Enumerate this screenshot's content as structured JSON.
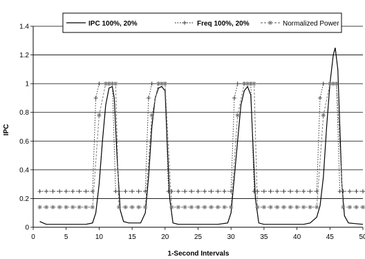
{
  "chart_data": {
    "type": "line",
    "xlabel": "1-Second Intervals",
    "ylabel": "IPC",
    "xlim": [
      0,
      50
    ],
    "ylim": [
      0,
      1.4
    ],
    "x_ticks": [
      0,
      5,
      10,
      15,
      20,
      25,
      30,
      35,
      40,
      45,
      50
    ],
    "y_ticks": [
      0,
      0.2,
      0.4,
      0.6,
      0.8,
      1,
      1.2,
      1.4
    ],
    "y_tick_labels": [
      "0",
      "0.2",
      "0.4",
      "0.6",
      "0.8",
      "1",
      "1.2",
      "1.4"
    ],
    "grid": "horizontal",
    "legend_position": "top",
    "series": [
      {
        "name": "IPC 100%, 20%",
        "style": "solid",
        "color": "#000000",
        "points": [
          [
            1,
            0.04
          ],
          [
            1.5,
            0.03
          ],
          [
            2,
            0.02
          ],
          [
            4,
            0.02
          ],
          [
            6,
            0.02
          ],
          [
            8,
            0.02
          ],
          [
            9,
            0.03
          ],
          [
            9.5,
            0.1
          ],
          [
            10,
            0.3
          ],
          [
            10.5,
            0.6
          ],
          [
            11,
            0.85
          ],
          [
            11.5,
            0.97
          ],
          [
            12,
            0.98
          ],
          [
            12.3,
            0.9
          ],
          [
            12.7,
            0.5
          ],
          [
            13.2,
            0.12
          ],
          [
            13.7,
            0.04
          ],
          [
            14.5,
            0.03
          ],
          [
            15.5,
            0.03
          ],
          [
            16.3,
            0.03
          ],
          [
            17,
            0.1
          ],
          [
            17.5,
            0.35
          ],
          [
            18,
            0.7
          ],
          [
            18.5,
            0.9
          ],
          [
            19,
            0.97
          ],
          [
            19.5,
            0.98
          ],
          [
            20,
            0.95
          ],
          [
            20.3,
            0.6
          ],
          [
            20.7,
            0.2
          ],
          [
            21.2,
            0.03
          ],
          [
            22,
            0.02
          ],
          [
            25,
            0.02
          ],
          [
            28,
            0.02
          ],
          [
            29.5,
            0.03
          ],
          [
            30,
            0.1
          ],
          [
            30.5,
            0.35
          ],
          [
            31,
            0.6
          ],
          [
            31.5,
            0.85
          ],
          [
            32,
            0.95
          ],
          [
            32.5,
            0.98
          ],
          [
            33,
            0.92
          ],
          [
            33.3,
            0.6
          ],
          [
            33.7,
            0.2
          ],
          [
            34.2,
            0.03
          ],
          [
            35,
            0.02
          ],
          [
            38,
            0.02
          ],
          [
            41,
            0.02
          ],
          [
            42,
            0.03
          ],
          [
            43,
            0.07
          ],
          [
            43.5,
            0.15
          ],
          [
            44,
            0.35
          ],
          [
            44.5,
            0.7
          ],
          [
            45,
            1.0
          ],
          [
            45.5,
            1.2
          ],
          [
            45.8,
            1.25
          ],
          [
            46.2,
            1.1
          ],
          [
            46.5,
            0.7
          ],
          [
            46.8,
            0.3
          ],
          [
            47.2,
            0.08
          ],
          [
            47.8,
            0.03
          ],
          [
            50,
            0.02
          ]
        ]
      },
      {
        "name": "Freq 100%, 20%",
        "style": "dotted-plus",
        "color": "#333333",
        "points": [
          [
            1,
            0.25
          ],
          [
            2,
            0.25
          ],
          [
            3,
            0.25
          ],
          [
            4,
            0.25
          ],
          [
            5,
            0.25
          ],
          [
            6,
            0.25
          ],
          [
            7,
            0.25
          ],
          [
            8,
            0.25
          ],
          [
            9,
            0.25
          ],
          [
            9.5,
            0.9
          ],
          [
            10,
            1
          ],
          [
            11,
            1
          ],
          [
            11.5,
            1
          ],
          [
            12,
            1
          ],
          [
            12.5,
            0.25
          ],
          [
            13,
            0.25
          ],
          [
            14,
            0.25
          ],
          [
            15,
            0.25
          ],
          [
            16,
            0.25
          ],
          [
            17,
            0.25
          ],
          [
            17.5,
            0.9
          ],
          [
            18,
            1
          ],
          [
            19,
            1
          ],
          [
            19.5,
            1
          ],
          [
            20,
            1
          ],
          [
            20.5,
            0.25
          ],
          [
            21,
            0.25
          ],
          [
            22,
            0.25
          ],
          [
            23,
            0.25
          ],
          [
            24,
            0.25
          ],
          [
            25,
            0.25
          ],
          [
            26,
            0.25
          ],
          [
            27,
            0.25
          ],
          [
            28,
            0.25
          ],
          [
            29,
            0.25
          ],
          [
            30,
            0.25
          ],
          [
            30.5,
            0.9
          ],
          [
            31,
            1
          ],
          [
            32,
            1
          ],
          [
            32.5,
            1
          ],
          [
            33,
            1
          ],
          [
            33.5,
            0.25
          ],
          [
            34,
            0.25
          ],
          [
            35,
            0.25
          ],
          [
            36,
            0.25
          ],
          [
            37,
            0.25
          ],
          [
            38,
            0.25
          ],
          [
            39,
            0.25
          ],
          [
            40,
            0.25
          ],
          [
            41,
            0.25
          ],
          [
            42,
            0.25
          ],
          [
            43,
            0.25
          ],
          [
            43.5,
            0.9
          ],
          [
            44,
            1
          ],
          [
            45,
            1
          ],
          [
            45.5,
            1
          ],
          [
            46,
            1
          ],
          [
            46.5,
            0.25
          ],
          [
            47,
            0.25
          ],
          [
            48,
            0.25
          ],
          [
            49,
            0.25
          ],
          [
            50,
            0.25
          ]
        ]
      },
      {
        "name": "Normalized Power",
        "style": "dashed-star",
        "color": "#777777",
        "points": [
          [
            1,
            0.14
          ],
          [
            2,
            0.14
          ],
          [
            3,
            0.14
          ],
          [
            4,
            0.14
          ],
          [
            5,
            0.14
          ],
          [
            6,
            0.14
          ],
          [
            7,
            0.14
          ],
          [
            8,
            0.14
          ],
          [
            9,
            0.14
          ],
          [
            10,
            0.78
          ],
          [
            11,
            1
          ],
          [
            11.5,
            1
          ],
          [
            12,
            1
          ],
          [
            12.5,
            1
          ],
          [
            13,
            0.14
          ],
          [
            14,
            0.14
          ],
          [
            15,
            0.14
          ],
          [
            16,
            0.14
          ],
          [
            17,
            0.14
          ],
          [
            18,
            0.78
          ],
          [
            19,
            1
          ],
          [
            19.5,
            1
          ],
          [
            20,
            1
          ],
          [
            21,
            0.14
          ],
          [
            22,
            0.14
          ],
          [
            23,
            0.14
          ],
          [
            24,
            0.14
          ],
          [
            25,
            0.14
          ],
          [
            26,
            0.14
          ],
          [
            27,
            0.14
          ],
          [
            28,
            0.14
          ],
          [
            29,
            0.14
          ],
          [
            30,
            0.14
          ],
          [
            31,
            0.78
          ],
          [
            32,
            1
          ],
          [
            32.5,
            1
          ],
          [
            33,
            1
          ],
          [
            33.5,
            1
          ],
          [
            34,
            0.14
          ],
          [
            35,
            0.14
          ],
          [
            36,
            0.14
          ],
          [
            37,
            0.14
          ],
          [
            38,
            0.14
          ],
          [
            39,
            0.14
          ],
          [
            40,
            0.14
          ],
          [
            41,
            0.14
          ],
          [
            42,
            0.14
          ],
          [
            43,
            0.14
          ],
          [
            44,
            0.78
          ],
          [
            45,
            1
          ],
          [
            45.5,
            1
          ],
          [
            46,
            1
          ],
          [
            47,
            0.14
          ],
          [
            48,
            0.14
          ],
          [
            49,
            0.14
          ],
          [
            50,
            0.14
          ]
        ]
      }
    ]
  }
}
